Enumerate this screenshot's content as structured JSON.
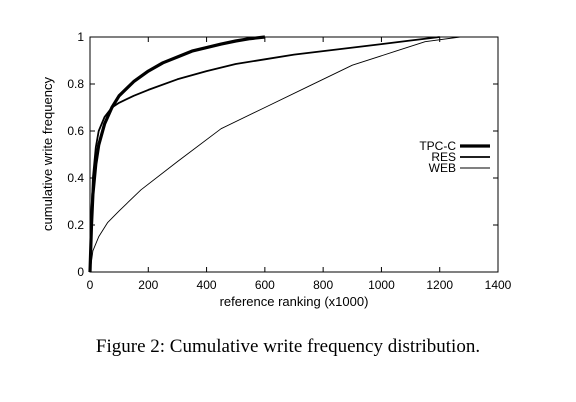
{
  "caption": "Figure 2: Cumulative write frequency distribution.",
  "chart_data": {
    "type": "line",
    "title": "",
    "xlabel": "reference ranking (x1000)",
    "ylabel": "cumulative write frequency",
    "xlim": [
      0,
      1400
    ],
    "ylim": [
      0,
      1
    ],
    "xticks": [
      0,
      200,
      400,
      600,
      800,
      1000,
      1200,
      1400
    ],
    "yticks": [
      0,
      0.2,
      0.4,
      0.6,
      0.8,
      1
    ],
    "ytick_labels": [
      "0",
      "0.2",
      "0.4",
      "0.6",
      "0.8",
      "1"
    ],
    "grid": false,
    "legend_position": "right",
    "series": [
      {
        "name": "TPC-C",
        "line_weight": "heavy",
        "x": [
          0,
          5,
          10,
          20,
          30,
          50,
          75,
          100,
          150,
          200,
          250,
          300,
          350,
          400,
          450,
          500,
          550,
          600
        ],
        "y": [
          0,
          0.2,
          0.33,
          0.46,
          0.54,
          0.63,
          0.7,
          0.75,
          0.81,
          0.855,
          0.89,
          0.915,
          0.94,
          0.955,
          0.97,
          0.983,
          0.993,
          1.0
        ]
      },
      {
        "name": "RES",
        "line_weight": "medium",
        "x": [
          0,
          5,
          10,
          20,
          30,
          50,
          75,
          100,
          150,
          200,
          300,
          400,
          500,
          600,
          700,
          800,
          900,
          1000,
          1100,
          1200
        ],
        "y": [
          0,
          0.25,
          0.4,
          0.53,
          0.6,
          0.66,
          0.7,
          0.72,
          0.75,
          0.775,
          0.82,
          0.855,
          0.885,
          0.905,
          0.925,
          0.94,
          0.955,
          0.97,
          0.985,
          1.0
        ]
      },
      {
        "name": "WEB",
        "line_weight": "thin",
        "x": [
          0,
          10,
          30,
          60,
          100,
          175,
          300,
          450,
          600,
          750,
          900,
          1050,
          1150,
          1270
        ],
        "y": [
          0,
          0.09,
          0.15,
          0.21,
          0.26,
          0.35,
          0.47,
          0.61,
          0.7,
          0.79,
          0.88,
          0.94,
          0.98,
          1.0
        ]
      }
    ]
  }
}
